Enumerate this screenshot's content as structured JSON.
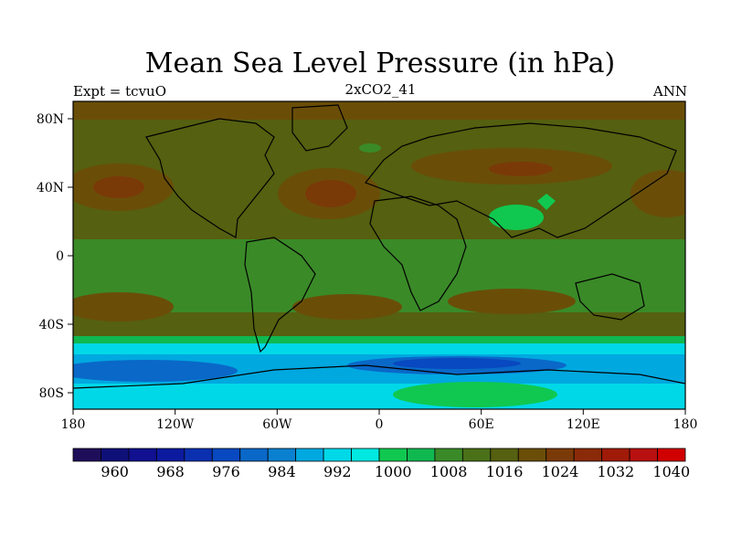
{
  "title": "Mean Sea Level Pressure (in hPa)",
  "left_label": "Expt = tcvuO",
  "center_label": "2xCO2_41",
  "right_label": "ANN",
  "chart_data": {
    "type": "heatmap",
    "title": "Mean Sea Level Pressure (in hPa)",
    "units": "hPa",
    "x_ticks": [
      "180",
      "120W",
      "60W",
      "0",
      "60E",
      "120E",
      "180"
    ],
    "y_ticks": [
      "80N",
      "40N",
      "0",
      "40S",
      "80S"
    ],
    "x_range": [
      -180,
      180
    ],
    "y_range": [
      -90,
      90
    ],
    "colorbar": {
      "labels": [
        "960",
        "968",
        "976",
        "984",
        "992",
        "1000",
        "1008",
        "1016",
        "1024",
        "1032",
        "1040"
      ],
      "colors": [
        "#1e0e5a",
        "#0f0f78",
        "#101090",
        "#0c1aa0",
        "#0a30b0",
        "#0848c0",
        "#0a68c8",
        "#0a80d0",
        "#00a8e0",
        "#00d8e8",
        "#00e8e0",
        "#10c850",
        "#10b850",
        "#3a8a28",
        "#4a7018",
        "#556010",
        "#6a4e08",
        "#7a3a08",
        "#8a2a08",
        "#a01a08",
        "#b81010",
        "#d00000"
      ]
    }
  }
}
